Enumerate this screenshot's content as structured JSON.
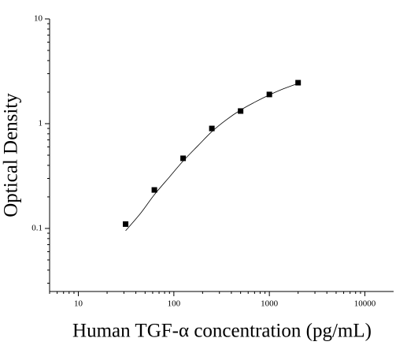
{
  "chart_data": {
    "type": "scatter",
    "x_label": "Human TGF-α concentration (pg/mL)",
    "y_label": "Optical Density",
    "xscale": "log",
    "yscale": "log",
    "xlim": [
      5,
      20000
    ],
    "ylim": [
      0.025,
      10
    ],
    "xticks": [
      10,
      100,
      1000,
      10000
    ],
    "yticks": [
      0.1,
      1,
      10
    ],
    "xminorticks": [
      5,
      6,
      7,
      8,
      9,
      20,
      30,
      40,
      50,
      60,
      70,
      80,
      90,
      200,
      300,
      400,
      500,
      600,
      700,
      800,
      900,
      2000,
      3000,
      4000,
      5000,
      6000,
      7000,
      8000,
      9000
    ],
    "yminorticks": [
      0.03,
      0.04,
      0.05,
      0.06,
      0.07,
      0.08,
      0.09,
      0.2,
      0.3,
      0.4,
      0.5,
      0.6,
      0.7,
      0.8,
      0.9,
      2,
      3,
      4,
      5,
      6,
      7,
      8,
      9
    ],
    "series": [
      {
        "kind": "markers",
        "color": "#000000",
        "x": [
          31.25,
          62.5,
          125,
          250,
          500,
          1000,
          2000
        ],
        "values": [
          0.11,
          0.233,
          0.467,
          0.9,
          1.32,
          1.9,
          2.46
        ]
      },
      {
        "kind": "line",
        "color": "#000000",
        "x": [
          31.25,
          45,
          62.5,
          90,
          125,
          180,
          250,
          350,
          500,
          700,
          1000,
          1400,
          2000
        ],
        "values": [
          0.095,
          0.14,
          0.21,
          0.31,
          0.44,
          0.62,
          0.84,
          1.08,
          1.35,
          1.6,
          1.88,
          2.15,
          2.42
        ]
      }
    ]
  }
}
